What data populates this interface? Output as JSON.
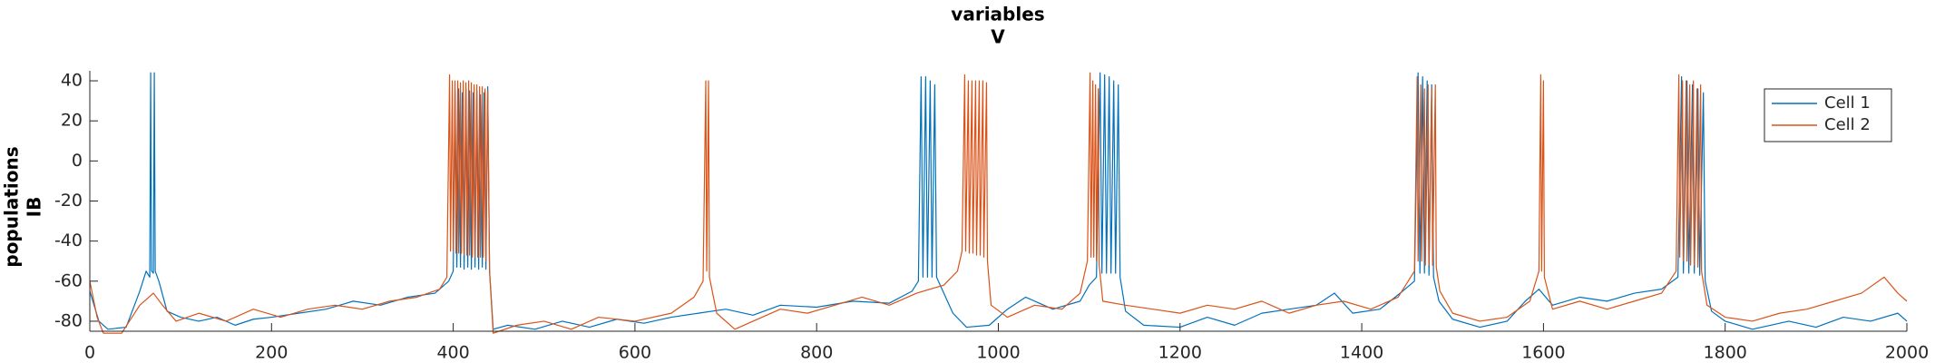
{
  "chart_data": {
    "type": "line",
    "title": [
      "variables",
      "V"
    ],
    "ylabel": [
      "populations",
      "IB"
    ],
    "xlim": [
      0,
      2000
    ],
    "xticks": [
      0,
      200,
      400,
      600,
      800,
      1000,
      1200,
      1400,
      1600,
      1800,
      2000
    ],
    "ylim": [
      -85,
      45
    ],
    "yticks": [
      -80,
      -60,
      -40,
      -20,
      0,
      20,
      40
    ],
    "grid": false,
    "legend": "northeast",
    "series": [
      {
        "name": "Cell 1",
        "color": "#0072BD",
        "x": [
          0,
          10,
          20,
          40,
          55,
          62,
          66,
          67,
          68,
          70,
          71,
          72,
          76,
          85,
          100,
          120,
          140,
          160,
          180,
          200,
          230,
          260,
          290,
          320,
          350,
          380,
          395,
          400,
          402,
          404,
          406,
          408,
          410,
          412,
          414,
          416,
          418,
          420,
          422,
          424,
          426,
          428,
          430,
          432,
          434,
          436,
          438,
          440,
          444,
          460,
          490,
          520,
          550,
          580,
          610,
          640,
          670,
          700,
          730,
          760,
          800,
          840,
          880,
          905,
          912,
          915,
          917,
          920,
          922,
          925,
          927,
          930,
          932,
          936,
          950,
          965,
          990,
          1010,
          1030,
          1060,
          1090,
          1100,
          1108,
          1112,
          1114,
          1117,
          1119,
          1122,
          1124,
          1127,
          1129,
          1132,
          1134,
          1140,
          1160,
          1200,
          1230,
          1260,
          1290,
          1320,
          1350,
          1370,
          1390,
          1420,
          1445,
          1458,
          1462,
          1464,
          1467,
          1469,
          1472,
          1474,
          1477,
          1479,
          1485,
          1500,
          1530,
          1560,
          1580,
          1595,
          1610,
          1640,
          1670,
          1700,
          1730,
          1748,
          1752,
          1754,
          1758,
          1760,
          1764,
          1766,
          1770,
          1772,
          1776,
          1778,
          1785,
          1800,
          1830,
          1870,
          1900,
          1930,
          1960,
          1990,
          2000
        ],
        "values": [
          -65,
          -80,
          -84,
          -83,
          -65,
          -55,
          -58,
          44,
          -55,
          -56,
          44,
          -55,
          -60,
          -75,
          -78,
          -80,
          -78,
          -82,
          -79,
          -78,
          -76,
          -74,
          -70,
          -72,
          -68,
          -66,
          -60,
          -55,
          35,
          -53,
          36,
          -53,
          34,
          -54,
          36,
          -53,
          35,
          -54,
          34,
          -53,
          35,
          -54,
          33,
          -53,
          34,
          -54,
          37,
          -55,
          -84,
          -82,
          -84,
          -80,
          -83,
          -79,
          -81,
          -78,
          -76,
          -74,
          -77,
          -72,
          -73,
          -70,
          -71,
          -65,
          -60,
          42,
          -58,
          42,
          -58,
          40,
          -58,
          38,
          -58,
          -62,
          -76,
          -83,
          -82,
          -74,
          -68,
          -74,
          -70,
          -62,
          -58,
          44,
          -56,
          43,
          -56,
          42,
          -56,
          40,
          -56,
          38,
          -58,
          -75,
          -82,
          -83,
          -78,
          -82,
          -76,
          -74,
          -72,
          -66,
          -76,
          -74,
          -65,
          -60,
          44,
          -56,
          42,
          -56,
          40,
          -57,
          38,
          -58,
          -70,
          -79,
          -83,
          -80,
          -70,
          -64,
          -72,
          -68,
          -70,
          -66,
          -64,
          -58,
          42,
          -56,
          40,
          -56,
          38,
          -56,
          36,
          -57,
          34,
          -60,
          -75,
          -80,
          -84,
          -80,
          -83,
          -78,
          -80,
          -76,
          -80
        ]
      },
      {
        "name": "Cell 2",
        "color": "#D95319",
        "x": [
          0,
          8,
          15,
          35,
          55,
          70,
          80,
          95,
          120,
          150,
          180,
          210,
          240,
          270,
          300,
          330,
          360,
          385,
          393,
          396,
          397,
          399,
          400,
          402,
          403,
          405,
          406,
          408,
          409,
          411,
          412,
          414,
          415,
          417,
          418,
          420,
          421,
          423,
          424,
          426,
          427,
          429,
          430,
          432,
          433,
          435,
          436,
          438,
          440,
          444,
          470,
          500,
          530,
          560,
          600,
          640,
          665,
          675,
          678,
          679,
          681,
          682,
          690,
          710,
          730,
          760,
          790,
          820,
          850,
          880,
          910,
          940,
          955,
          960,
          963,
          964,
          967,
          968,
          971,
          972,
          975,
          976,
          979,
          980,
          983,
          984,
          987,
          988,
          992,
          1010,
          1040,
          1070,
          1090,
          1098,
          1101,
          1102,
          1104,
          1105,
          1107,
          1108,
          1110,
          1111,
          1115,
          1140,
          1170,
          1200,
          1230,
          1260,
          1290,
          1320,
          1350,
          1380,
          1410,
          1440,
          1458,
          1461,
          1462,
          1465,
          1466,
          1469,
          1470,
          1473,
          1474,
          1477,
          1478,
          1481,
          1482,
          1486,
          1500,
          1530,
          1560,
          1585,
          1595,
          1597,
          1598,
          1600,
          1601,
          1610,
          1640,
          1670,
          1700,
          1730,
          1746,
          1749,
          1750,
          1753,
          1754,
          1757,
          1758,
          1761,
          1762,
          1765,
          1766,
          1769,
          1770,
          1773,
          1774,
          1780,
          1800,
          1830,
          1860,
          1890,
          1920,
          1950,
          1975,
          1990,
          2000
        ],
        "values": [
          -60,
          -78,
          -86,
          -86,
          -72,
          -66,
          -72,
          -80,
          -76,
          -80,
          -74,
          -78,
          -74,
          -72,
          -74,
          -70,
          -68,
          -64,
          -58,
          43,
          -45,
          40,
          -45,
          40,
          -46,
          40,
          -46,
          39,
          -46,
          40,
          -47,
          39,
          -47,
          40,
          -47,
          39,
          -48,
          38,
          -48,
          38,
          -48,
          37,
          -48,
          37,
          -48,
          36,
          -50,
          35,
          -55,
          -86,
          -82,
          -80,
          -84,
          -78,
          -80,
          -76,
          -68,
          -60,
          40,
          -55,
          40,
          -58,
          -76,
          -84,
          -80,
          -74,
          -76,
          -72,
          -68,
          -72,
          -66,
          -62,
          -55,
          -45,
          43,
          -45,
          40,
          -46,
          40,
          -46,
          40,
          -47,
          40,
          -47,
          40,
          -48,
          39,
          -50,
          -72,
          -78,
          -72,
          -74,
          -66,
          -50,
          44,
          -48,
          40,
          -48,
          38,
          -50,
          36,
          -52,
          -70,
          -72,
          -74,
          -76,
          -72,
          -74,
          -70,
          -76,
          -72,
          -70,
          -74,
          -68,
          -55,
          42,
          -50,
          38,
          -50,
          36,
          -52,
          38,
          -52,
          36,
          -52,
          38,
          -53,
          -65,
          -76,
          -80,
          -78,
          -70,
          -55,
          43,
          -55,
          40,
          -58,
          -74,
          -70,
          -74,
          -70,
          -66,
          -55,
          43,
          -48,
          40,
          -50,
          40,
          -50,
          38,
          -52,
          40,
          -52,
          36,
          -53,
          38,
          -55,
          -72,
          -78,
          -80,
          -76,
          -74,
          -70,
          -66,
          -58,
          -66,
          -70
        ]
      }
    ]
  }
}
